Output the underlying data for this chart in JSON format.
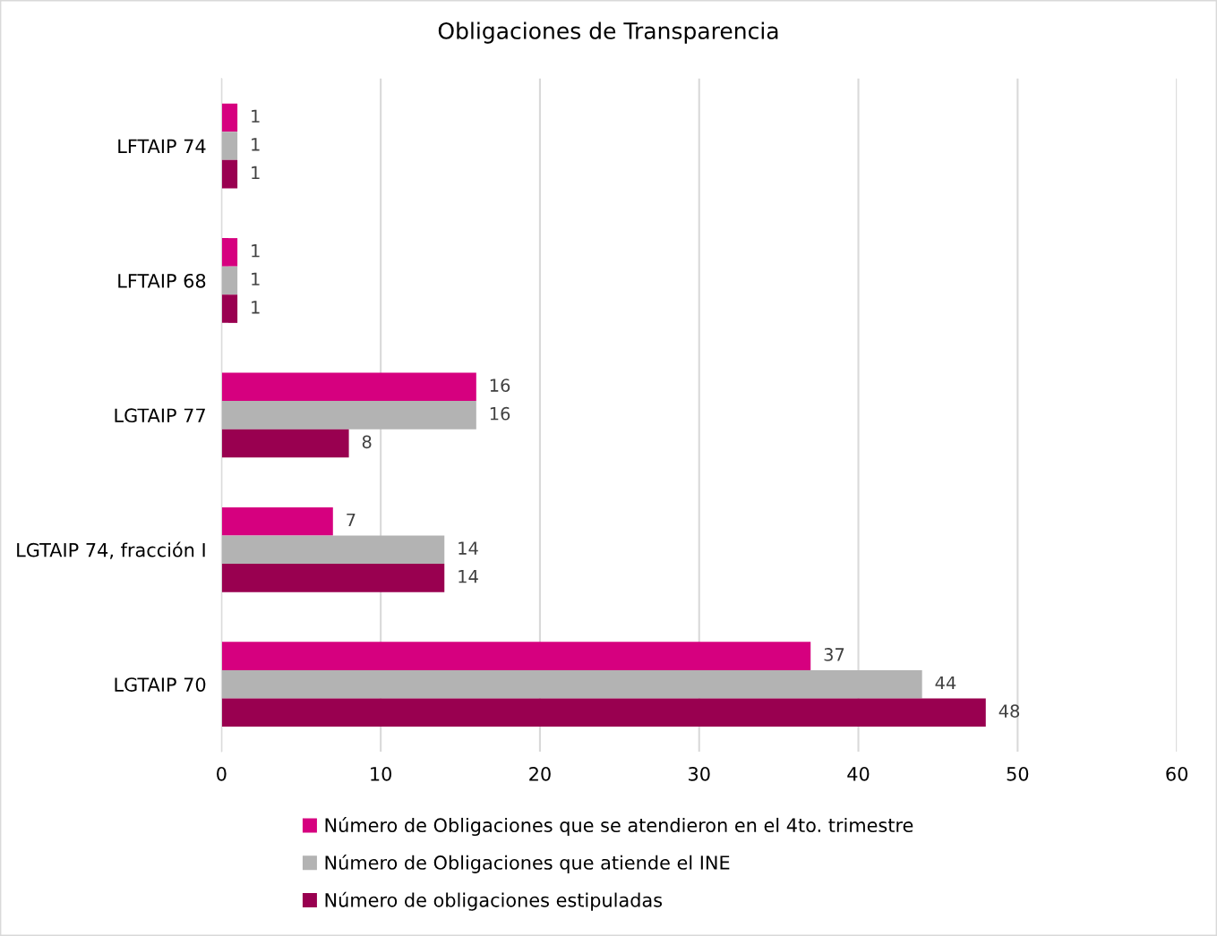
{
  "chart_data": {
    "type": "bar",
    "orientation": "horizontal",
    "title": "Obligaciones de Transparencia",
    "categories": [
      "LFTAIP 74",
      "LFTAIP 68",
      "LGTAIP 77",
      "LGTAIP 74, fracción I",
      "LGTAIP 70"
    ],
    "series": [
      {
        "name": "Número de Obligaciones que se atendieron en el 4to. trimestre",
        "color": "#d6007f",
        "values": [
          1,
          1,
          16,
          7,
          37
        ]
      },
      {
        "name": "Número de Obligaciones que atiende el INE",
        "color": "#b3b3b3",
        "values": [
          1,
          1,
          16,
          14,
          44
        ]
      },
      {
        "name": "Número de obligaciones estipuladas",
        "color": "#990050",
        "values": [
          1,
          1,
          8,
          14,
          48
        ]
      }
    ],
    "xlim": [
      0,
      60
    ],
    "xticks": [
      0,
      10,
      20,
      30,
      40,
      50,
      60
    ],
    "grid": "x",
    "legend": "bottom",
    "data_labels": true
  }
}
